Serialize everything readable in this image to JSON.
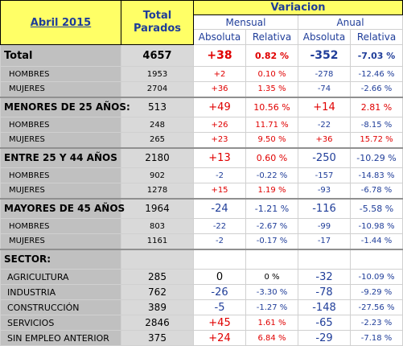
{
  "header": {
    "period": "Abril 2015",
    "total": "Total Parados",
    "variation": "Variacion",
    "monthly": "Mensual",
    "annual": "Anual",
    "sub": [
      "Absoluta",
      "Relativa",
      "Absoluta",
      "Relativa"
    ]
  },
  "table": {
    "rows": [
      [
        "Total",
        "4657",
        "+38",
        "0.82 %",
        "-352",
        "-7.03 %"
      ],
      [
        "HOMBRES",
        "1953",
        "+2",
        "0.10 %",
        "-278",
        "-12.46 %"
      ],
      [
        "MUJERES",
        "2704",
        "+36",
        "1.35 %",
        "-74",
        "-2.66 %"
      ],
      [
        "MENORES DE 25 AÑOS:",
        "513",
        "+49",
        "10.56 %",
        "+14",
        "2.81 %"
      ],
      [
        "HOMBRES",
        "248",
        "+26",
        "11.71 %",
        "-22",
        "-8.15 %"
      ],
      [
        "MUJERES",
        "265",
        "+23",
        "9.50 %",
        "+36",
        "15.72 %"
      ],
      [
        "ENTRE 25 Y 44 AÑOS",
        "2180",
        "+13",
        "0.60 %",
        "-250",
        "-10.29 %"
      ],
      [
        "HOMBRES",
        "902",
        "-2",
        "-0.22 %",
        "-157",
        "-14.83 %"
      ],
      [
        "MUJERES",
        "1278",
        "+15",
        "1.19 %",
        "-93",
        "-6.78 %"
      ],
      [
        "MAYORES DE 45 AÑOS",
        "1964",
        "-24",
        "-1.21 %",
        "-116",
        "-5.58 %"
      ],
      [
        "HOMBRES",
        "803",
        "-22",
        "-2.67 %",
        "-99",
        "-10.98 %"
      ],
      [
        "MUJERES",
        "1161",
        "-2",
        "-0.17 %",
        "-17",
        "-1.44 %"
      ],
      [
        "SECTOR:"
      ],
      [
        "AGRICULTURA",
        "285",
        "0",
        "0 %",
        "-32",
        "-10.09 %"
      ],
      [
        "INDUSTRIA",
        "762",
        "-26",
        "-3.30 %",
        "-78",
        "-9.29 %"
      ],
      [
        "CONSTRUCCIÓN",
        "389",
        "-5",
        "-1.27 %",
        "-148",
        "-27.56 %"
      ],
      [
        "SERVICIOS",
        "2846",
        "+45",
        "1.61 %",
        "-65",
        "-2.23 %"
      ],
      [
        "SIN EMPLEO ANTERIOR",
        "375",
        "+24",
        "6.84 %",
        "-29",
        "-7.18 %"
      ]
    ]
  }
}
